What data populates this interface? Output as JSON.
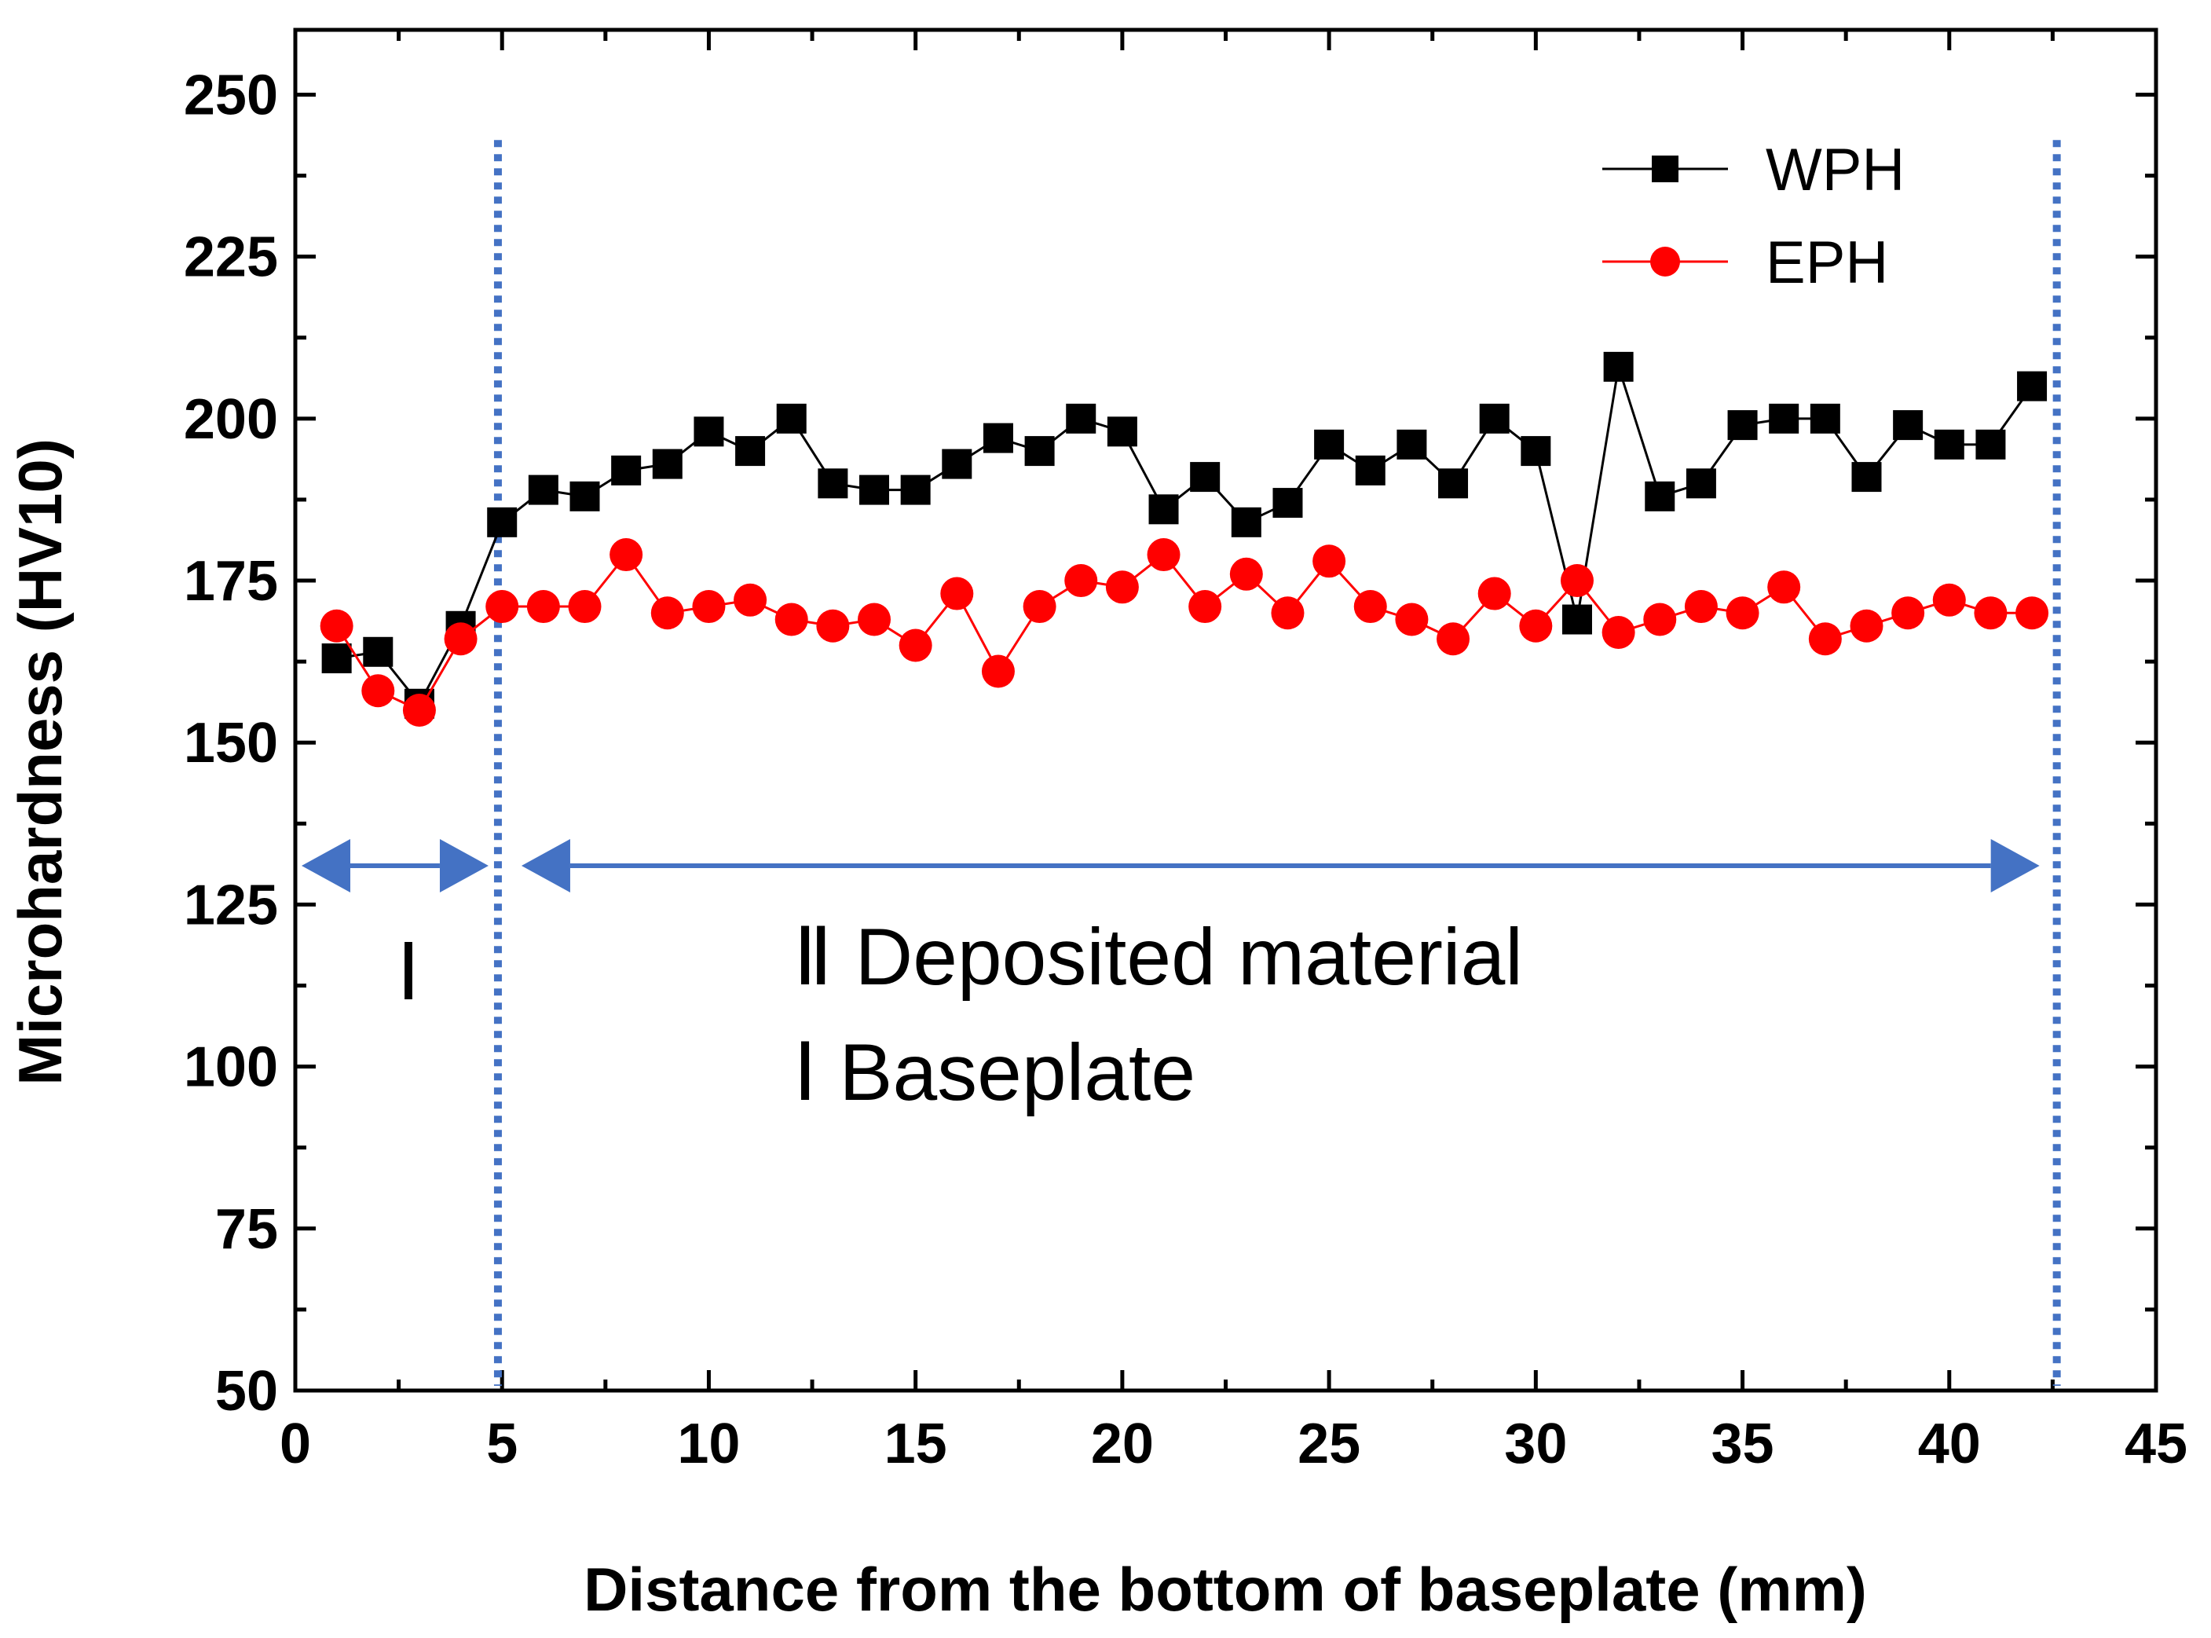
{
  "chart_data": {
    "type": "line",
    "title": "",
    "xlabel": "Distance from the bottom of baseplate (mm)",
    "ylabel": "Microhardness (HV10)",
    "xlim": [
      0,
      45
    ],
    "ylim": [
      50,
      260
    ],
    "xticks": [
      0,
      5,
      10,
      15,
      20,
      25,
      30,
      35,
      40,
      45
    ],
    "yticks": [
      50,
      75,
      100,
      125,
      150,
      175,
      200,
      225,
      250
    ],
    "grid": false,
    "legend_position": "top-right",
    "series": [
      {
        "name": "WPH",
        "color": "#000000",
        "marker": "square",
        "x": [
          1,
          2,
          3,
          4,
          5,
          6,
          7,
          8,
          9,
          10,
          11,
          12,
          13,
          14,
          15,
          16,
          17,
          18,
          19,
          20,
          21,
          22,
          23,
          24,
          25,
          26,
          27,
          28,
          29,
          30,
          31,
          32,
          33,
          34,
          35,
          36,
          37,
          38,
          39,
          40,
          41,
          42
        ],
        "values": [
          163,
          164,
          156,
          168,
          184,
          189,
          188,
          192,
          193,
          198,
          195,
          200,
          190,
          189,
          189,
          193,
          197,
          195,
          200,
          198,
          186,
          191,
          184,
          187,
          196,
          192,
          196,
          190,
          200,
          195,
          169,
          208,
          188,
          190,
          199,
          200,
          200,
          191,
          199,
          196,
          196,
          205
        ]
      },
      {
        "name": "EPH",
        "color": "#ff0000",
        "marker": "circle",
        "x": [
          1,
          2,
          3,
          4,
          5,
          6,
          7,
          8,
          9,
          10,
          11,
          12,
          13,
          14,
          15,
          16,
          17,
          18,
          19,
          20,
          21,
          22,
          23,
          24,
          25,
          26,
          27,
          28,
          29,
          30,
          31,
          32,
          33,
          34,
          35,
          36,
          37,
          38,
          39,
          40,
          41,
          42
        ],
        "values": [
          168,
          158,
          155,
          166,
          171,
          171,
          171,
          179,
          170,
          171,
          172,
          169,
          168,
          169,
          165,
          173,
          161,
          171,
          175,
          174,
          179,
          171,
          176,
          170,
          178,
          171,
          169,
          166,
          173,
          168,
          175,
          167,
          169,
          171,
          170,
          174,
          166,
          168,
          170,
          172,
          170,
          170
        ]
      }
    ],
    "boundaries": [
      4.9,
      42.6
    ],
    "annotations": {
      "region_one": "Ⅰ",
      "region_two_text": "Ⅱ Deposited material",
      "region_one_text": "Ⅰ Baseplate",
      "arrow_level": 131
    },
    "colors": {
      "boundary": "#4472c4",
      "arrow": "#4472c4"
    }
  }
}
